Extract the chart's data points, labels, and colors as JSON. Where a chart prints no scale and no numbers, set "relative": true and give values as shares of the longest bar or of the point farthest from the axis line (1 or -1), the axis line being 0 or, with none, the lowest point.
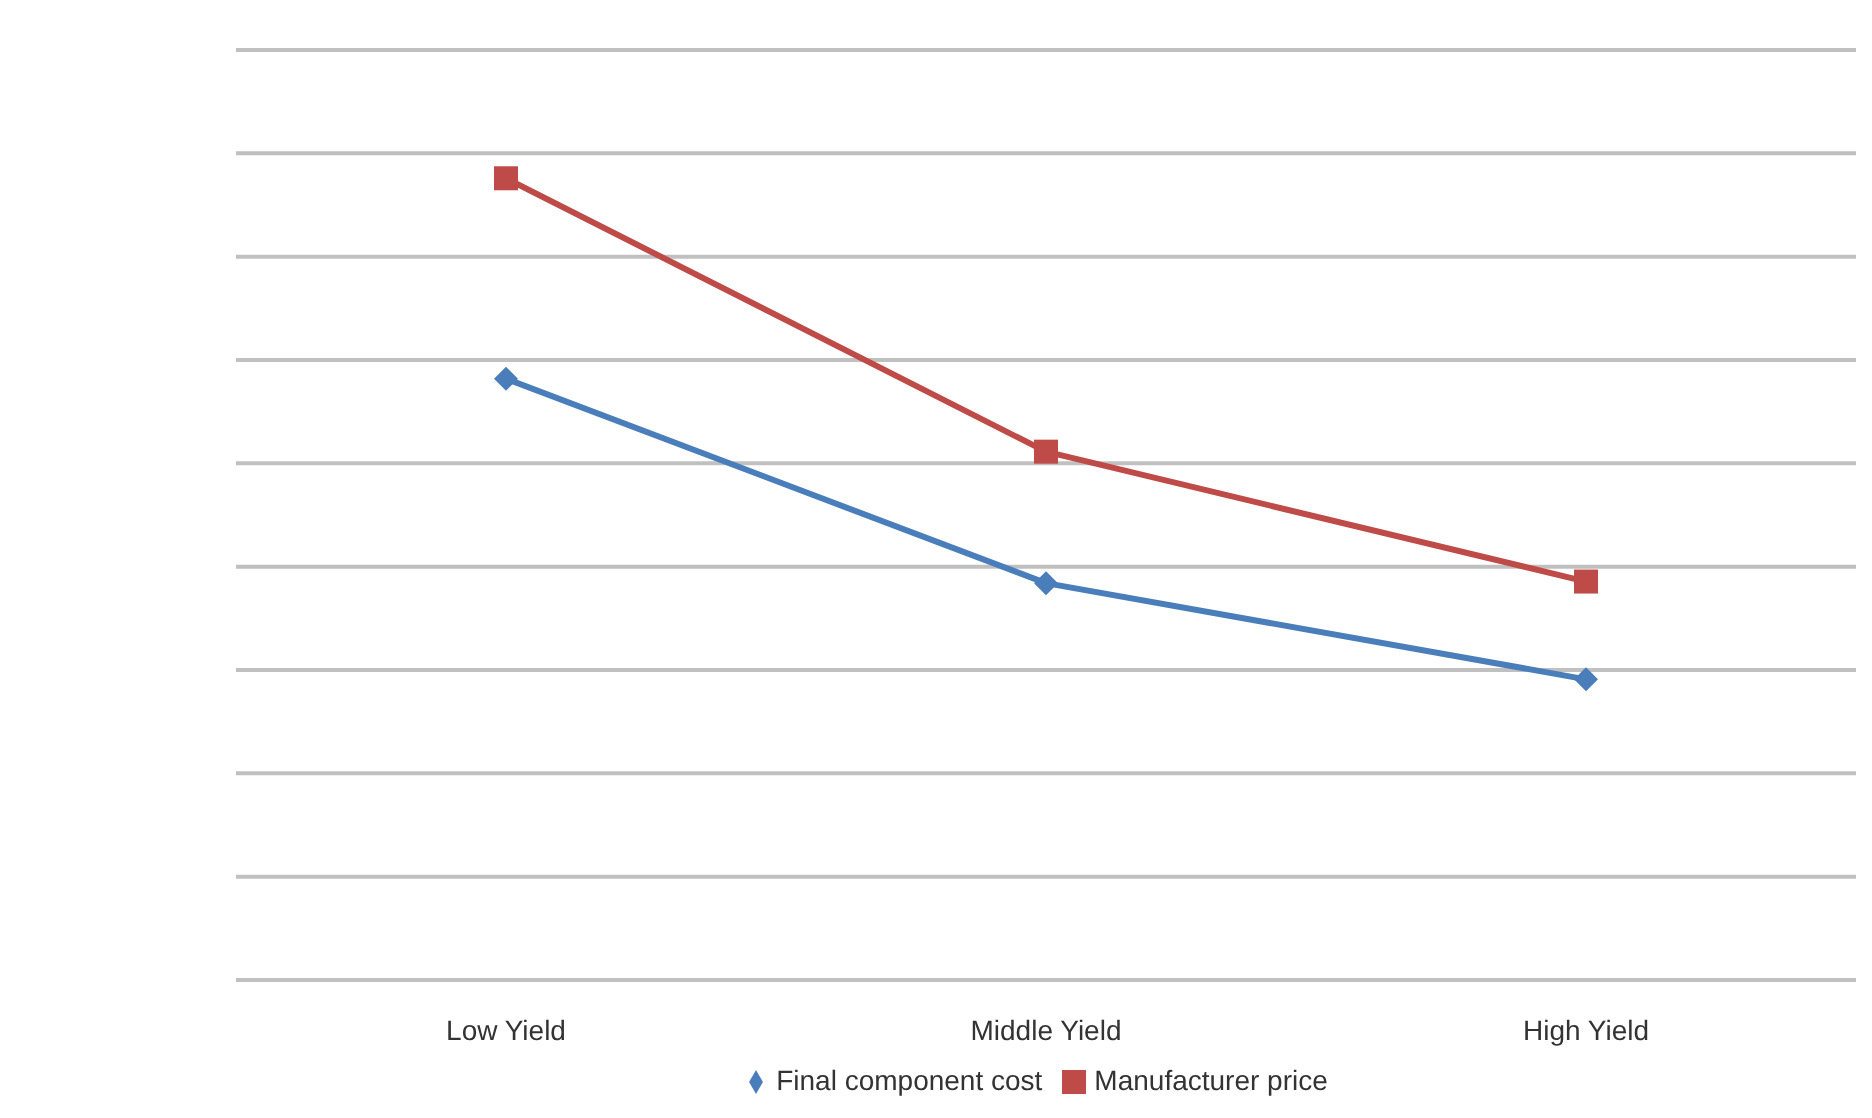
{
  "chart_data": {
    "type": "line",
    "relative": true,
    "grid": "y",
    "legend": "bottom",
    "categories": [
      "Low Yield",
      "Middle Yield",
      "High Yield"
    ],
    "series": [
      {
        "name": "Final component cost",
        "color": "#4a7ebb",
        "marker": "diamond",
        "values": [
          0.75,
          0.495,
          0.375
        ]
      },
      {
        "name": "Manufacturer price",
        "color": "#be4b48",
        "marker": "square",
        "values": [
          1,
          0.659,
          0.497
        ]
      }
    ]
  }
}
